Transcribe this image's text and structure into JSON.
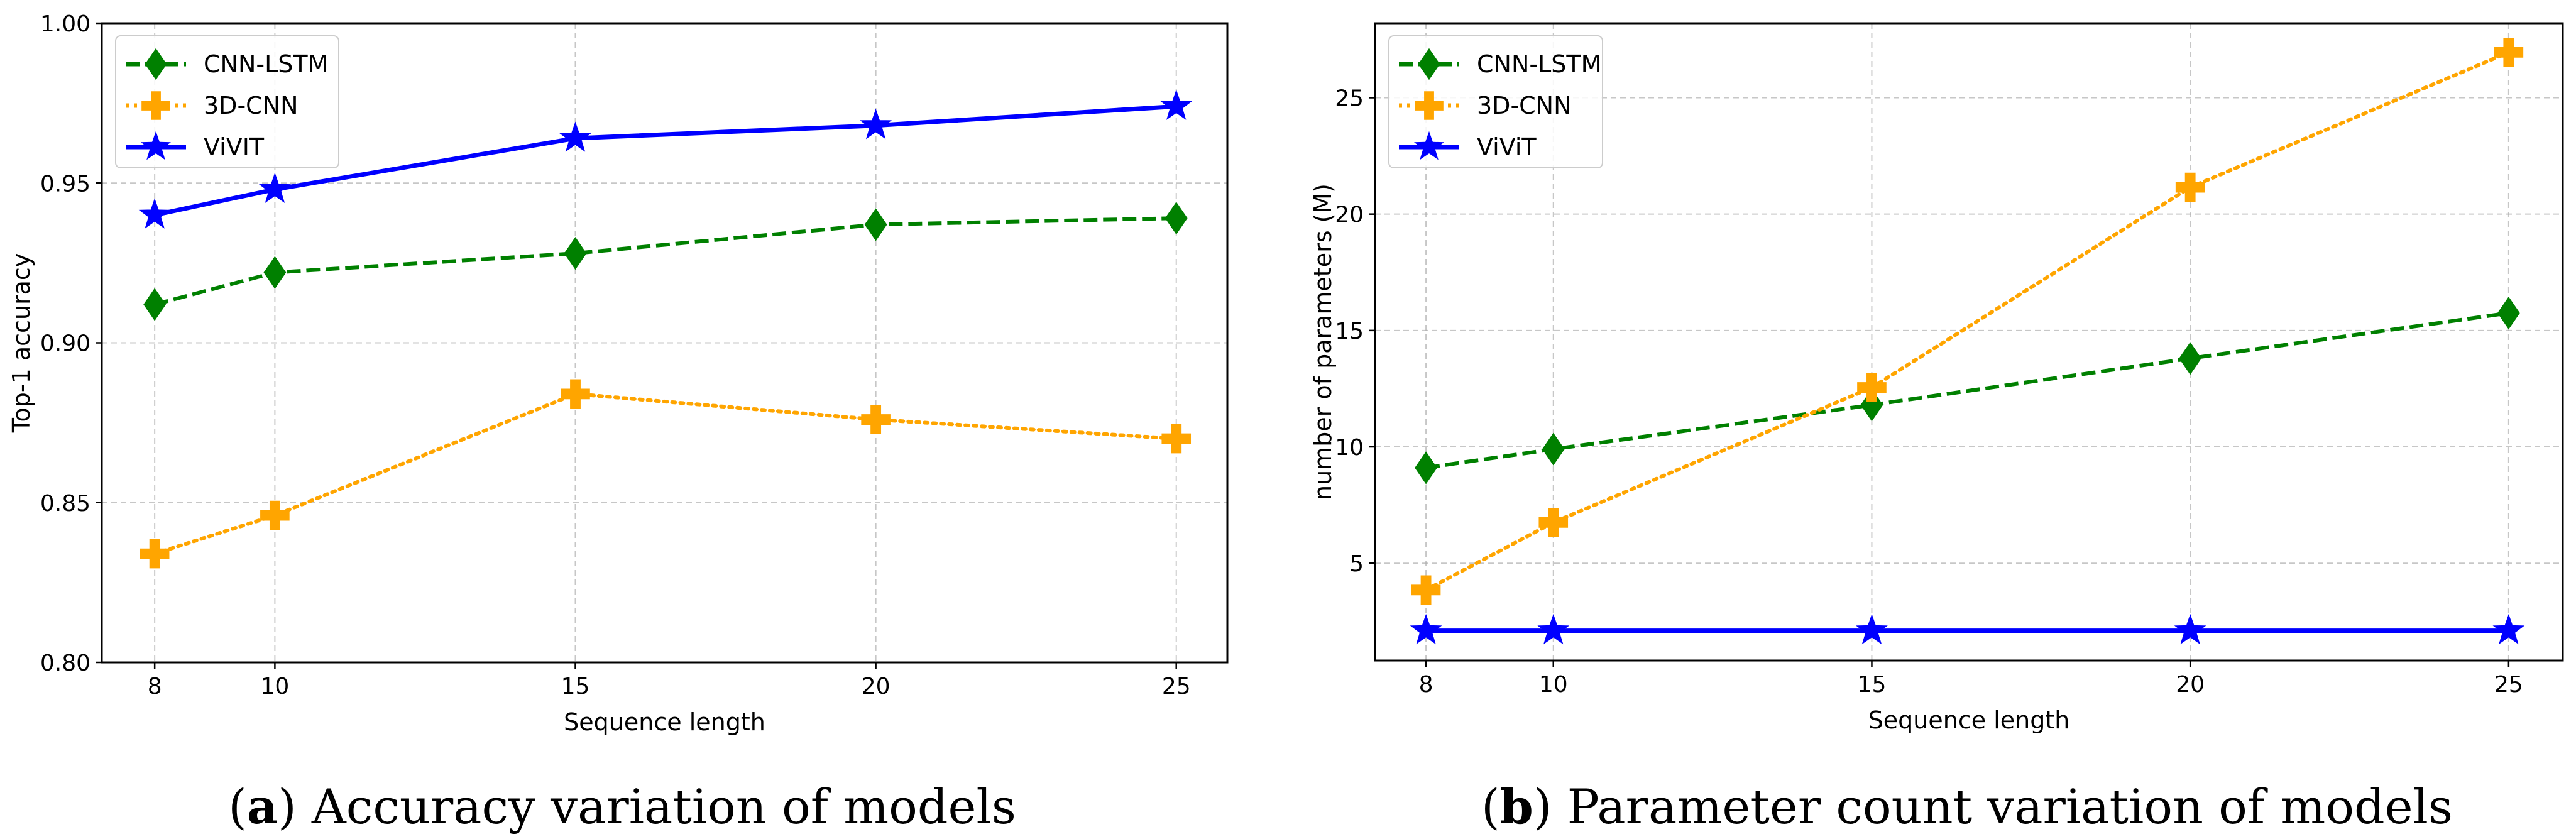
{
  "chart_data": [
    {
      "type": "line",
      "caption_letter": "a",
      "caption_text": " Accuracy variation of models",
      "caption_open": "(",
      "caption_close": ")",
      "xlabel": "Sequence length",
      "ylabel": "Top-1 accuracy",
      "x": [
        8,
        10,
        15,
        20,
        25
      ],
      "xticks": [
        "8",
        "10",
        "15",
        "20",
        "25"
      ],
      "yticks": [
        0.8,
        0.85,
        0.9,
        0.95,
        1.0
      ],
      "ytick_labels": [
        "0.80",
        "0.85",
        "0.90",
        "0.95",
        "1.00"
      ],
      "xlim": [
        7.12,
        25.85
      ],
      "ylim": [
        0.8,
        1.0
      ],
      "grid": true,
      "legend_position": "top-left",
      "series": [
        {
          "name": "CNN-LSTM",
          "color": "#008000",
          "marker": "diamond",
          "linestyle": "dashed",
          "values": [
            0.912,
            0.922,
            0.928,
            0.937,
            0.939
          ]
        },
        {
          "name": "3D-CNN",
          "color": "#FFA500",
          "marker": "plus",
          "linestyle": "dotted",
          "values": [
            0.834,
            0.846,
            0.884,
            0.876,
            0.87
          ]
        },
        {
          "name": "ViVIT",
          "color": "#0000FF",
          "marker": "star",
          "linestyle": "solid",
          "values": [
            0.94,
            0.948,
            0.964,
            0.968,
            0.974
          ]
        }
      ]
    },
    {
      "type": "line",
      "caption_letter": "b",
      "caption_text": " Parameter count variation of models",
      "caption_open": "(",
      "caption_close": ")",
      "xlabel": "Sequence length",
      "ylabel": "number of parameters (M)",
      "x": [
        8,
        10,
        15,
        20,
        25
      ],
      "xticks": [
        "8",
        "10",
        "15",
        "20",
        "25"
      ],
      "yticks": [
        5,
        10,
        15,
        20,
        25
      ],
      "ytick_labels": [
        "5",
        "10",
        "15",
        "20",
        "25"
      ],
      "xlim": [
        7.2,
        25.85
      ],
      "ylim": [
        0.82,
        28.2
      ],
      "grid": true,
      "legend_position": "top-left",
      "series": [
        {
          "name": "CNN-LSTM",
          "color": "#008000",
          "marker": "diamond",
          "linestyle": "dashed",
          "values": [
            9.1,
            9.9,
            11.8,
            13.8,
            15.75
          ]
        },
        {
          "name": "3D-CNN",
          "color": "#FFA500",
          "marker": "plus",
          "linestyle": "dotted",
          "values": [
            3.85,
            6.75,
            12.55,
            21.15,
            26.95
          ]
        },
        {
          "name": "ViViT",
          "color": "#0000FF",
          "marker": "star",
          "linestyle": "solid",
          "values": [
            2.1,
            2.1,
            2.1,
            2.1,
            2.1
          ]
        }
      ]
    }
  ]
}
